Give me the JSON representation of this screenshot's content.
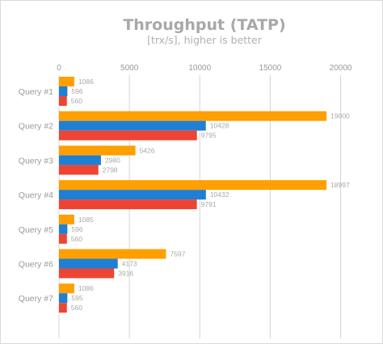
{
  "chart_data": {
    "type": "bar",
    "orientation": "horizontal",
    "title": "Throughput (TATP)",
    "subtitle": "[trx/s], higher is better",
    "categories": [
      "Query #1",
      "Query #2",
      "Query #3",
      "Query #4",
      "Query #5",
      "Query #6",
      "Query #7"
    ],
    "series": [
      {
        "values": [
          1086,
          19000,
          5426,
          18997,
          1085,
          7597,
          1086
        ],
        "color": "#ff9f00"
      },
      {
        "values": [
          596,
          10428,
          2980,
          10432,
          596,
          4173,
          595
        ],
        "color": "#1f7fd4"
      },
      {
        "values": [
          560,
          9795,
          2798,
          9791,
          560,
          3916,
          560
        ],
        "color": "#ee4433"
      }
    ],
    "xlim": [
      0,
      21000
    ],
    "xticks": [
      0,
      5000,
      10000,
      15000,
      20000
    ],
    "grid": true,
    "legend": "none"
  }
}
